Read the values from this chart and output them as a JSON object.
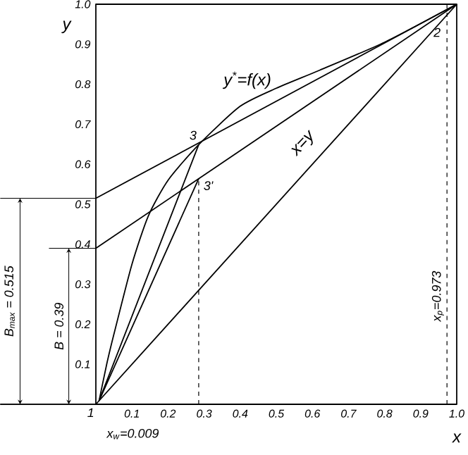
{
  "chart_data": {
    "type": "line",
    "xlabel": "x",
    "ylabel": "y",
    "xlim": [
      0,
      1
    ],
    "ylim": [
      0,
      1
    ],
    "xticks": [
      0.1,
      0.2,
      0.3,
      0.4,
      0.5,
      0.6,
      0.7,
      0.8,
      0.9,
      {
        "value": 1,
        "label": "1.0"
      }
    ],
    "yticks": [
      0.1,
      0.2,
      0.3,
      0.4,
      0.5,
      0.6,
      0.7,
      0.8,
      0.9,
      {
        "value": 1,
        "label": "1.0"
      }
    ],
    "marker": "none",
    "line_style": "solid",
    "series": [
      {
        "name": "y$^{*}$=f(x)",
        "color": "#000000",
        "x": [
          0.009,
          0.03,
          0.05,
          0.1,
          0.145,
          0.2,
          0.285,
          0.4,
          0.5,
          0.62,
          0.8,
          1
        ],
        "values": [
          0.009,
          0.1,
          0.175,
          0.35,
          0.47,
          0.56,
          0.649,
          0.745,
          0.79,
          0.835,
          0.905,
          1
        ]
      },
      {
        "name": "x=y",
        "color": "#000000",
        "x": [
          0,
          1
        ],
        "values": [
          0,
          1
        ]
      },
      {
        "color": "#000000",
        "x": [
          0,
          1
        ],
        "values": [
          0.515,
          1
        ]
      },
      {
        "color": "#000000",
        "x": [
          0,
          1
        ],
        "values": [
          0.39,
          1
        ]
      },
      {
        "color": "#000000",
        "x": [
          0.009,
          0.285
        ],
        "values": [
          0.009,
          0.649
        ]
      },
      {
        "color": "#000000",
        "x": [
          0.009,
          0.285
        ],
        "values": [
          0.009,
          0.564
        ]
      }
    ],
    "ref_lines": [
      {
        "axis": "x",
        "value": 0.285,
        "line_style": "dashed"
      },
      {
        "axis": "x",
        "value": 0.973,
        "label": "x$_{p}$=0.973",
        "line_style": "dashed"
      }
    ],
    "annotations": [
      {
        "text": "1",
        "x": 0.009,
        "y": 0.009
      },
      {
        "text": "2",
        "x": 1,
        "y": 1
      },
      {
        "text": "3",
        "x": 0.285,
        "y": 0.649
      },
      {
        "text": "3'",
        "x": 0.285,
        "y": 0.564
      },
      {
        "text": "x$_{w}$=0.009",
        "x": 0.009,
        "y": 0
      },
      "B$_{max}$ = 0.515",
      "B = 0.39"
    ]
  }
}
